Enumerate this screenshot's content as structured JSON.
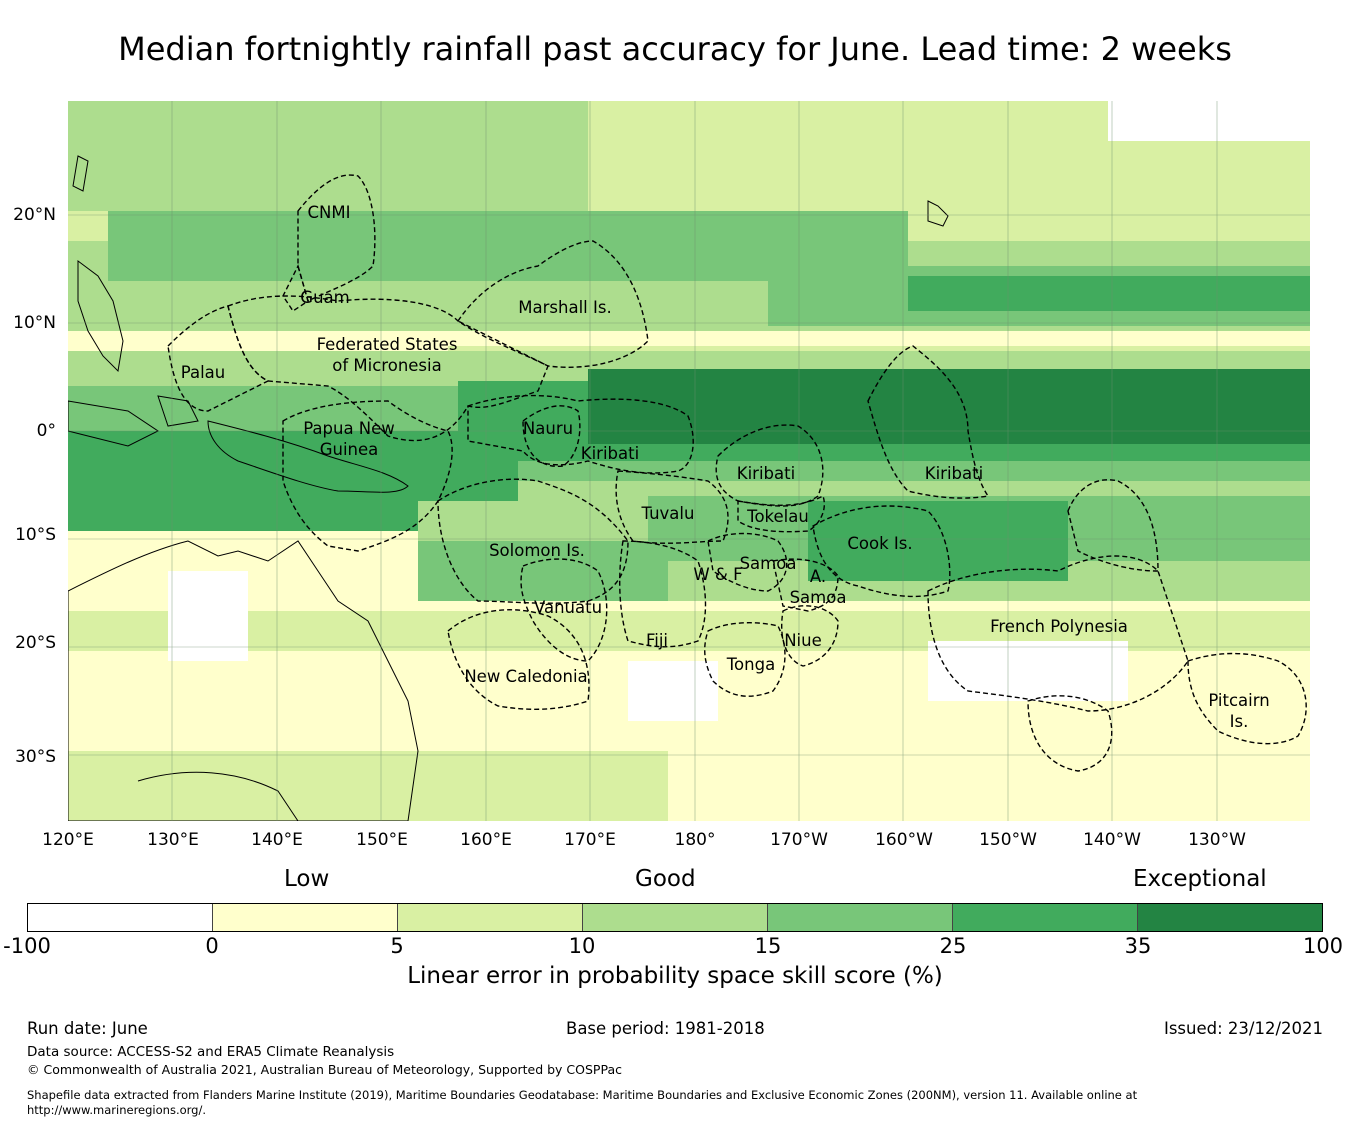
{
  "title": "Median fortnightly rainfall past accuracy for June. Lead time: 2 weeks",
  "map": {
    "lon_labels": [
      "120°E",
      "130°E",
      "140°E",
      "150°E",
      "160°E",
      "170°E",
      "180°",
      "170°W",
      "160°W",
      "150°W",
      "140°W",
      "130°W"
    ],
    "lat_labels": [
      "20°N",
      "10°N",
      "0°",
      "10°S",
      "20°S",
      "30°S"
    ],
    "regions": [
      {
        "name": "CNMI",
        "lines": [
          "CNMI"
        ]
      },
      {
        "name": "Guam",
        "lines": [
          "Guam"
        ]
      },
      {
        "name": "Marshall Is.",
        "lines": [
          "Marshall Is."
        ]
      },
      {
        "name": "Federated States of Micronesia",
        "lines": [
          "Federated States",
          "of Micronesia"
        ]
      },
      {
        "name": "Palau",
        "lines": [
          "Palau"
        ]
      },
      {
        "name": "Papua New Guinea",
        "lines": [
          "Papua New",
          "Guinea"
        ]
      },
      {
        "name": "Nauru",
        "lines": [
          "Nauru"
        ]
      },
      {
        "name": "Kiribati",
        "lines": [
          "Kiribati"
        ]
      },
      {
        "name": "Kiribati",
        "lines": [
          "Kiribati"
        ]
      },
      {
        "name": "Kiribati",
        "lines": [
          "Kiribati"
        ]
      },
      {
        "name": "Tuvalu",
        "lines": [
          "Tuvalu"
        ]
      },
      {
        "name": "Tokelau",
        "lines": [
          "Tokelau"
        ]
      },
      {
        "name": "Solomon Is.",
        "lines": [
          "Solomon Is."
        ]
      },
      {
        "name": "Samoa",
        "lines": [
          "Samoa"
        ]
      },
      {
        "name": "W & F",
        "lines": [
          "W & F"
        ]
      },
      {
        "name": "A. Samoa",
        "lines": [
          "A.",
          "Samoa"
        ]
      },
      {
        "name": "Cook Is.",
        "lines": [
          "Cook Is."
        ]
      },
      {
        "name": "Vanuatu",
        "lines": [
          "Vanuatu"
        ]
      },
      {
        "name": "French Polynesia",
        "lines": [
          "French Polynesia"
        ]
      },
      {
        "name": "Fiji",
        "lines": [
          "Fiji"
        ]
      },
      {
        "name": "Niue",
        "lines": [
          "Niue"
        ]
      },
      {
        "name": "Tonga",
        "lines": [
          "Tonga"
        ]
      },
      {
        "name": "New Caledonia",
        "lines": [
          "New Caledonia"
        ]
      },
      {
        "name": "Pitcairn Is.",
        "lines": [
          "Pitcairn",
          "Is."
        ]
      }
    ]
  },
  "colorbar": {
    "categories": [
      "Low",
      "Good",
      "Exceptional"
    ],
    "ticks": [
      "-100",
      "0",
      "5",
      "10",
      "15",
      "25",
      "35",
      "100"
    ],
    "colors": [
      "#ffffff",
      "#ffffcc",
      "#d9f0a3",
      "#addd8e",
      "#78c679",
      "#41ab5d",
      "#238443"
    ],
    "label": "Linear error in probability space skill score (%)"
  },
  "footer": {
    "run_date": "Run date: June",
    "base_period": "Base period: 1981-2018",
    "issued": "Issued: 23/12/2021",
    "data_source": "Data source: ACCESS-S2 and ERA5 Climate Reanalysis",
    "copyright": "© Commonwealth of Australia 2021, Australian Bureau of Meteorology, Supported by COSPPac",
    "shapefile_line1": "Shapefile data extracted from Flanders Marine Institute (2019), Maritime Boundaries Geodatabase: Maritime Boundaries and Exclusive Economic Zones (200NM), version 11. Available online at",
    "shapefile_line2": "http://www.marineregions.org/."
  }
}
